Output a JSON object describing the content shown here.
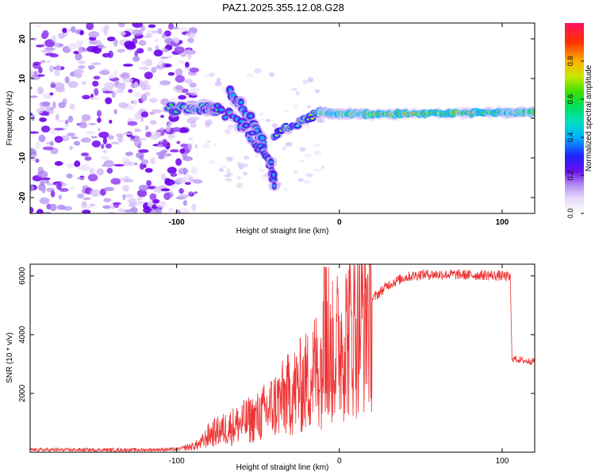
{
  "title": "PAZ1.2025.355.12.08.G28",
  "chart_data": [
    {
      "type": "heatmap",
      "xlabel": "Height of straight line (km)",
      "ylabel": "Frequency (Hz)",
      "xlim": [
        -190,
        120
      ],
      "ylim": [
        -24,
        24
      ],
      "xticks": [
        -100,
        0,
        100
      ],
      "yticks": [
        -20,
        -10,
        0,
        10,
        20
      ],
      "colorbar": {
        "label": "Normalized spectral amplitude",
        "range": [
          0,
          1
        ],
        "ticks": [
          "0.0",
          "0.2",
          "0.4",
          "0.6",
          "0.8"
        ]
      },
      "features": [
        {
          "name": "noise-region",
          "x_range": [
            -190,
            -95
          ],
          "f_range": [
            -24,
            24
          ]
        },
        {
          "name": "trace-segment-1",
          "points": [
            [
              -105,
              2.5
            ],
            [
              -90,
              2.5
            ],
            [
              -80,
              2.5
            ],
            [
              -75,
              1.5
            ]
          ]
        },
        {
          "name": "trace-segment-2",
          "points": [
            [
              -68,
              7
            ],
            [
              -60,
              3
            ],
            [
              -52,
              -2
            ],
            [
              -46,
              -7
            ]
          ]
        },
        {
          "name": "trace-segment-3",
          "points": [
            [
              -75,
              2
            ],
            [
              -62,
              -1
            ],
            [
              -55,
              -4
            ],
            [
              -48,
              -8
            ],
            [
              -42,
              -12
            ],
            [
              -40,
              -16
            ]
          ]
        },
        {
          "name": "trace-segment-4",
          "points": [
            [
              -40,
              -4
            ],
            [
              -30,
              -2
            ],
            [
              -20,
              0
            ],
            [
              -12,
              1.5
            ]
          ]
        },
        {
          "name": "trace-segment-5",
          "points": [
            [
              -12,
              1.5
            ],
            [
              0,
              1.2
            ],
            [
              20,
              1.0
            ],
            [
              60,
              1.2
            ],
            [
              100,
              1.5
            ],
            [
              120,
              1.5
            ]
          ]
        }
      ]
    },
    {
      "type": "line",
      "xlabel": "Height of straight line (km)",
      "ylabel": "SNR (10 * v/v)",
      "xlim": [
        -190,
        120
      ],
      "ylim": [
        0,
        6400
      ],
      "xticks": [
        -100,
        0,
        100
      ],
      "yticks": [
        2000,
        4000,
        6000
      ],
      "series": [
        {
          "name": "SNR",
          "color": "#ee3333",
          "x": [
            -190,
            -120,
            -100,
            -90,
            -85,
            -80,
            -70,
            -60,
            -50,
            -40,
            -30,
            -20,
            -15,
            -10,
            -5,
            0,
            10,
            20,
            30,
            40,
            50,
            60,
            70,
            80,
            90,
            100,
            105,
            106,
            110,
            115,
            120
          ],
          "y": [
            80,
            80,
            100,
            200,
            300,
            600,
            800,
            1000,
            1200,
            1600,
            2000,
            2400,
            2800,
            3100,
            3300,
            3700,
            4400,
            5200,
            5700,
            5950,
            6050,
            6050,
            6050,
            6030,
            6030,
            6000,
            5950,
            3200,
            3150,
            3100,
            3100
          ]
        }
      ]
    }
  ]
}
